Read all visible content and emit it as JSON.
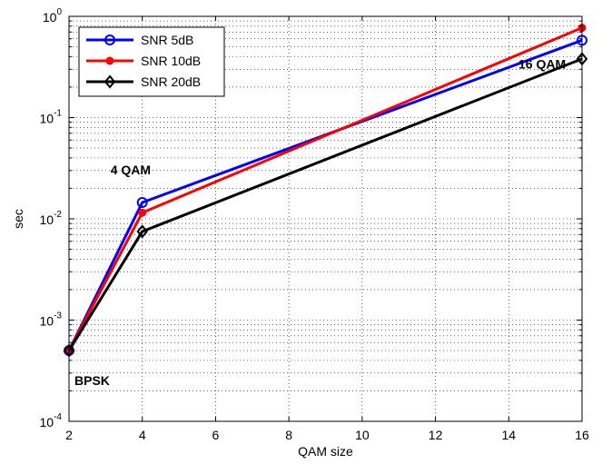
{
  "chart_data": {
    "type": "line",
    "title": "",
    "xlabel": "QAM size",
    "ylabel": "sec",
    "x_scale": "linear",
    "y_scale": "log",
    "xlim": [
      2,
      16
    ],
    "ylim": [
      0.0001,
      1
    ],
    "x_ticks": [
      "2",
      "4",
      "6",
      "8",
      "10",
      "12",
      "14",
      "16"
    ],
    "y_ticks": [
      {
        "base": "10",
        "exp": "-4"
      },
      {
        "base": "10",
        "exp": "-3"
      },
      {
        "base": "10",
        "exp": "-2"
      },
      {
        "base": "10",
        "exp": "-1"
      },
      {
        "base": "10",
        "exp": "0"
      }
    ],
    "grid": true,
    "legend_position": "top-left",
    "x": [
      2,
      4,
      16
    ],
    "series": [
      {
        "name": "SNR 5dB",
        "color": "#0000ff",
        "marker": "circle-open",
        "values": [
          0.0005,
          0.0145,
          0.58
        ]
      },
      {
        "name": "SNR 10dB",
        "color": "#ff0000",
        "marker": "circle-filled",
        "values": [
          0.0005,
          0.0115,
          0.77
        ]
      },
      {
        "name": "SNR 20dB",
        "color": "#000000",
        "marker": "diamond-open",
        "values": [
          0.0005,
          0.0075,
          0.38
        ]
      }
    ],
    "annotations": [
      {
        "text": "BPSK",
        "x": 2,
        "y": 0.0005
      },
      {
        "text": "4 QAM",
        "x": 4,
        "y": 0.0145
      },
      {
        "text": "16 QAM",
        "x": 16,
        "y": 0.58
      }
    ]
  }
}
